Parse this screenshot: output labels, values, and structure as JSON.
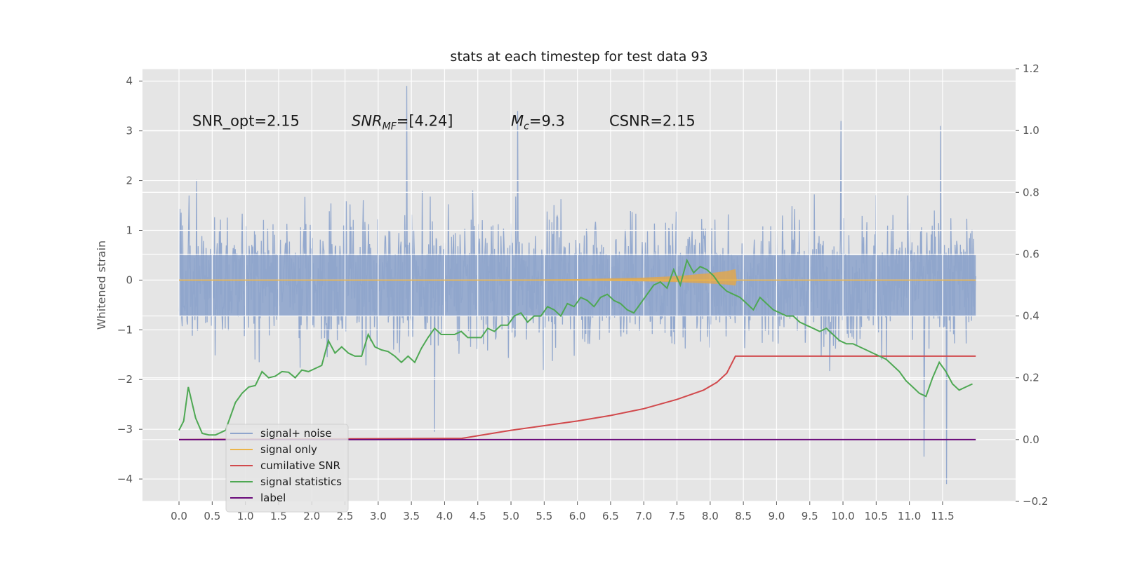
{
  "chart_data": {
    "type": "line",
    "title": "stats at each timestep for test data 93",
    "ylabel": "Whitened strain",
    "xlabel": "",
    "xlim": [
      -0.55,
      12.6
    ],
    "ylim": [
      -4.45,
      4.25
    ],
    "y2lim": [
      -0.2,
      1.2
    ],
    "x_ticks": [
      "0.0",
      "0.5",
      "1.0",
      "1.5",
      "2.0",
      "2.5",
      "3.0",
      "3.5",
      "4.0",
      "4.5",
      "5.0",
      "5.5",
      "6.0",
      "6.5",
      "7.0",
      "7.5",
      "8.0",
      "8.5",
      "9.0",
      "9.5",
      "10.0",
      "10.5",
      "11.0",
      "11.5"
    ],
    "y_ticks": [
      "4",
      "3",
      "2",
      "1",
      "0",
      "−1",
      "−2",
      "−3",
      "−4"
    ],
    "y2_ticks": [
      "1.2",
      "1.0",
      "0.8",
      "0.6",
      "0.4",
      "0.2",
      "0.0",
      "−0.2"
    ],
    "grid": true,
    "legend_position": "lower-left",
    "annotations": [
      {
        "text": "SNR_opt=2.15",
        "x": 0.2,
        "y": 3.1
      },
      {
        "text": "SNR_MF=[4.24]",
        "x": 2.6,
        "y": 3.1
      },
      {
        "text": "M_c=9.3",
        "x": 5.0,
        "y": 3.1
      },
      {
        "text": "CSNR=2.15",
        "x": 6.48,
        "y": 3.1
      }
    ],
    "colors": {
      "background": "#e5e5e5",
      "signal_noise": "#8fa5cc",
      "signal_only": "#ecb54a",
      "signal_fill": "#e0a74f",
      "cumulative_snr": "#d1494c",
      "signal_statistics": "#4ea853",
      "label": "#6a0a7a"
    },
    "series": [
      {
        "name": "signal+ noise",
        "axis": "left",
        "style": "dense-noise",
        "x_range": [
          0.0,
          12.0
        ],
        "upper_envelope": [
          1.2,
          1.85,
          2.4,
          2.9,
          3.05,
          1.0
        ],
        "lower_envelope": [
          -2.0,
          -2.5,
          -3.0,
          -3.5,
          -4.1
        ],
        "spikes": [
          {
            "x": 3.43,
            "y": 3.9
          },
          {
            "x": 5.1,
            "y": 3.4
          },
          {
            "x": 11.56,
            "y": -4.1
          },
          {
            "x": 11.22,
            "y": -3.55
          },
          {
            "x": 3.85,
            "y": -3.05
          },
          {
            "x": 9.97,
            "y": 3.2
          },
          {
            "x": 11.47,
            "y": 3.1
          },
          {
            "x": 6.0,
            "y": 0.65
          }
        ]
      },
      {
        "name": "signal only",
        "axis": "left",
        "x": [
          0.0,
          4.3,
          5.0,
          6.0,
          7.0,
          7.5,
          8.0,
          8.25,
          8.38,
          8.4,
          12.0
        ],
        "y": [
          0.0,
          0.0,
          0.0,
          0.0,
          0.0,
          0.0,
          0.0,
          0.0,
          0.0,
          0.0,
          0.0
        ],
        "envelope": [
          0.0,
          0.0,
          0.01,
          0.02,
          0.05,
          0.08,
          0.14,
          0.18,
          0.22,
          0.0,
          0.0
        ]
      },
      {
        "name": "cumilative SNR",
        "axis": "right",
        "x": [
          0.0,
          2.0,
          4.26,
          5.0,
          6.0,
          6.5,
          7.0,
          7.5,
          7.9,
          8.1,
          8.25,
          8.38,
          9.0,
          12.0
        ],
        "y": [
          0.0,
          0.002,
          0.004,
          0.03,
          0.06,
          0.078,
          0.1,
          0.13,
          0.16,
          0.185,
          0.215,
          0.27,
          0.27,
          0.27
        ]
      },
      {
        "name": "signal statistics",
        "axis": "right",
        "x": [
          0.0,
          0.07,
          0.14,
          0.25,
          0.35,
          0.45,
          0.55,
          0.7,
          0.85,
          0.95,
          1.05,
          1.15,
          1.25,
          1.35,
          1.45,
          1.55,
          1.65,
          1.75,
          1.85,
          1.95,
          2.05,
          2.15,
          2.25,
          2.35,
          2.45,
          2.55,
          2.65,
          2.75,
          2.85,
          2.95,
          3.05,
          3.15,
          3.25,
          3.35,
          3.45,
          3.55,
          3.65,
          3.75,
          3.85,
          3.95,
          4.05,
          4.15,
          4.25,
          4.35,
          4.45,
          4.55,
          4.65,
          4.75,
          4.85,
          4.95,
          5.05,
          5.15,
          5.25,
          5.35,
          5.45,
          5.55,
          5.65,
          5.75,
          5.85,
          5.95,
          6.05,
          6.15,
          6.25,
          6.35,
          6.45,
          6.55,
          6.65,
          6.75,
          6.85,
          6.95,
          7.05,
          7.15,
          7.25,
          7.35,
          7.45,
          7.55,
          7.65,
          7.75,
          7.85,
          7.95,
          8.05,
          8.15,
          8.25,
          8.35,
          8.45,
          8.55,
          8.65,
          8.75,
          8.85,
          8.95,
          9.05,
          9.15,
          9.25,
          9.35,
          9.45,
          9.55,
          9.65,
          9.75,
          9.85,
          9.95,
          10.05,
          10.15,
          10.25,
          10.35,
          10.45,
          10.55,
          10.65,
          10.75,
          10.85,
          10.95,
          11.05,
          11.15,
          11.25,
          11.35,
          11.45,
          11.55,
          11.65,
          11.75,
          11.85,
          11.95
        ],
        "y": [
          0.03,
          0.06,
          0.17,
          0.07,
          0.02,
          0.015,
          0.015,
          0.03,
          0.12,
          0.15,
          0.17,
          0.175,
          0.22,
          0.2,
          0.205,
          0.22,
          0.218,
          0.2,
          0.225,
          0.22,
          0.23,
          0.24,
          0.32,
          0.28,
          0.3,
          0.28,
          0.27,
          0.27,
          0.34,
          0.3,
          0.29,
          0.285,
          0.27,
          0.25,
          0.27,
          0.25,
          0.295,
          0.33,
          0.36,
          0.34,
          0.34,
          0.34,
          0.35,
          0.33,
          0.33,
          0.33,
          0.36,
          0.35,
          0.37,
          0.37,
          0.4,
          0.41,
          0.38,
          0.4,
          0.4,
          0.43,
          0.42,
          0.4,
          0.44,
          0.43,
          0.46,
          0.45,
          0.43,
          0.46,
          0.47,
          0.45,
          0.44,
          0.42,
          0.41,
          0.44,
          0.47,
          0.5,
          0.51,
          0.49,
          0.55,
          0.5,
          0.58,
          0.54,
          0.56,
          0.55,
          0.53,
          0.5,
          0.48,
          0.47,
          0.46,
          0.44,
          0.42,
          0.46,
          0.44,
          0.42,
          0.41,
          0.4,
          0.4,
          0.38,
          0.37,
          0.36,
          0.35,
          0.36,
          0.34,
          0.32,
          0.31,
          0.31,
          0.3,
          0.29,
          0.28,
          0.27,
          0.26,
          0.24,
          0.22,
          0.19,
          0.17,
          0.15,
          0.14,
          0.2,
          0.25,
          0.22,
          0.18,
          0.16,
          0.17,
          0.18
        ]
      },
      {
        "name": "label",
        "axis": "right",
        "x": [
          0.0,
          12.0
        ],
        "y": [
          0.0,
          0.0
        ]
      }
    ],
    "legend": [
      {
        "label": "signal+ noise"
      },
      {
        "label": "signal only"
      },
      {
        "label": "cumilative SNR"
      },
      {
        "label": "signal statistics"
      },
      {
        "label": "label"
      }
    ]
  }
}
